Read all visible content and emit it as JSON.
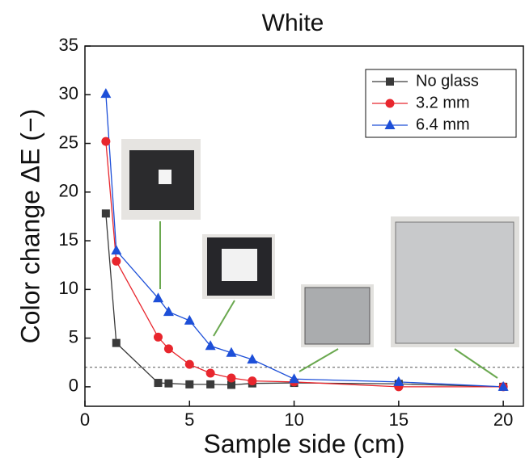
{
  "chart_data": {
    "type": "line",
    "title": "White",
    "x_label": "Sample side (cm)",
    "y_label": "Color change ΔE (−)",
    "x": [
      1,
      1.5,
      3.5,
      4,
      5,
      6,
      7,
      8,
      10,
      15,
      20
    ],
    "series": [
      {
        "name": "No glass",
        "color": "#3a3a3a",
        "marker": "square",
        "values": [
          17.8,
          4.5,
          0.4,
          0.35,
          0.25,
          0.25,
          0.2,
          0.35,
          0.4,
          0.3,
          0
        ]
      },
      {
        "name": "3.2 mm",
        "color": "#e8262d",
        "marker": "circle",
        "values": [
          25.2,
          12.9,
          5.1,
          3.9,
          2.3,
          1.4,
          0.9,
          0.6,
          0.5,
          0,
          0
        ]
      },
      {
        "name": "6.4 mm",
        "color": "#1d4fd8",
        "marker": "triangle",
        "values": [
          30.1,
          14,
          9.1,
          7.7,
          6.8,
          4.2,
          3.5,
          2.8,
          0.8,
          0.5,
          0
        ]
      }
    ],
    "reference_line": 2,
    "xlim": [
      0,
      21
    ],
    "xticks": [
      0,
      5,
      10,
      15,
      20
    ],
    "ylim": [
      -2,
      35
    ],
    "yticks": [
      0,
      5,
      10,
      15,
      20,
      25,
      30,
      35
    ],
    "legend": "upper right"
  }
}
